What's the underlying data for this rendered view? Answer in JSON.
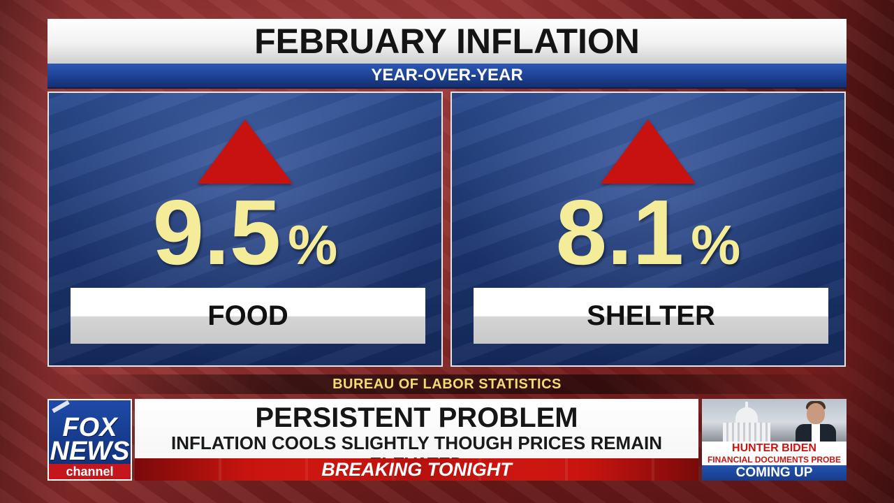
{
  "graphic": {
    "title": "FEBRUARY INFLATION",
    "subtitle": "YEAR-OVER-YEAR",
    "panels": [
      {
        "value": "9.5",
        "unit": "%",
        "label": "FOOD",
        "trend": "up",
        "arrow_icon": "red-up-triangle"
      },
      {
        "value": "8.1",
        "unit": "%",
        "label": "SHELTER",
        "trend": "up",
        "arrow_icon": "red-up-triangle"
      }
    ],
    "source": "BUREAU OF LABOR STATISTICS"
  },
  "network": {
    "logo_line1": "FOX",
    "logo_line2": "NEWS",
    "logo_line3": "channel"
  },
  "chyron": {
    "headline": "PERSISTENT PROBLEM",
    "subline": "INFLATION COOLS SLIGHTLY THOUGH PRICES REMAIN ELEVATED",
    "banner": "BREAKING TONIGHT"
  },
  "promo": {
    "line1": "HUNTER BIDEN",
    "line2": "FINANCIAL DOCUMENTS PROBE",
    "footer": "COMING UP"
  },
  "colors": {
    "accent_red": "#c8140f",
    "value_yellow": "#f5ec9a",
    "panel_blue": "#1c3670",
    "source_gold": "#f0dc72"
  }
}
